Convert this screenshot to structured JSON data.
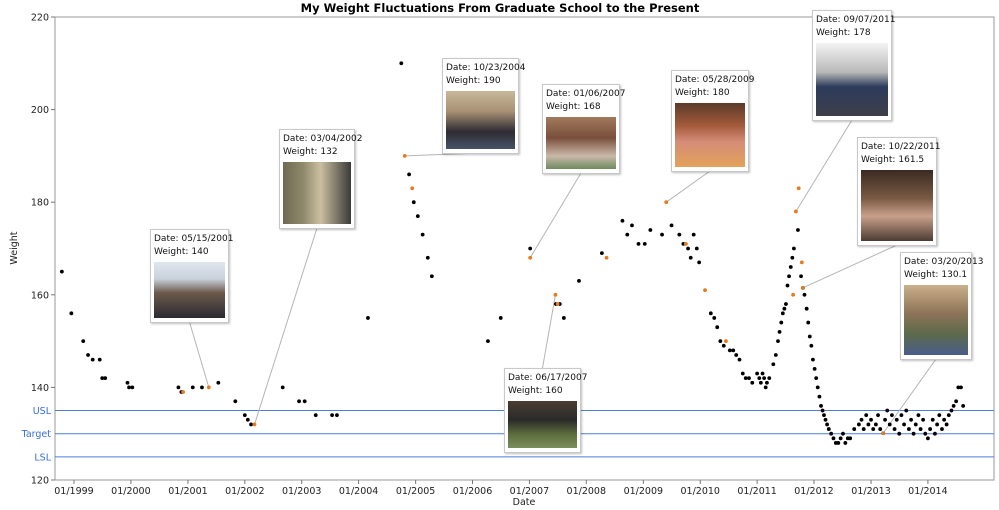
{
  "chart_data": {
    "type": "scatter",
    "title": "My Weight Fluctuations From Graduate School to the Present",
    "xlabel": "Date",
    "ylabel": "Weight",
    "ylim": [
      120,
      220
    ],
    "yticks": [
      120,
      140,
      160,
      180,
      200,
      220
    ],
    "xlim": [
      "1998-09-01",
      "2015-03-01"
    ],
    "xticks": [
      {
        "label": "01/1999",
        "date": "1999-01-01"
      },
      {
        "label": "01/2000",
        "date": "2000-01-01"
      },
      {
        "label": "01/2001",
        "date": "2001-01-01"
      },
      {
        "label": "01/2002",
        "date": "2002-01-01"
      },
      {
        "label": "01/2003",
        "date": "2003-01-01"
      },
      {
        "label": "01/2004",
        "date": "2004-01-01"
      },
      {
        "label": "01/2005",
        "date": "2005-01-01"
      },
      {
        "label": "01/2006",
        "date": "2006-01-01"
      },
      {
        "label": "01/2007",
        "date": "2007-01-01"
      },
      {
        "label": "01/2008",
        "date": "2008-01-01"
      },
      {
        "label": "01/2009",
        "date": "2009-01-01"
      },
      {
        "label": "01/2010",
        "date": "2010-01-01"
      },
      {
        "label": "01/2011",
        "date": "2011-01-01"
      },
      {
        "label": "01/2012",
        "date": "2012-01-01"
      },
      {
        "label": "01/2013",
        "date": "2013-01-01"
      },
      {
        "label": "01/2014",
        "date": "2014-01-01"
      }
    ],
    "reference_lines": [
      {
        "label": "USL",
        "value": 135
      },
      {
        "label": "Target",
        "value": 130
      },
      {
        "label": "LSL",
        "value": 125
      }
    ],
    "reference_color": "#4a7fe0",
    "grid": false,
    "point_colors": {
      "normal": "#000000",
      "highlighted": "#e87a1e"
    },
    "points": [
      {
        "date": "1998-10-15",
        "weight": 165
      },
      {
        "date": "1998-12-15",
        "weight": 156
      },
      {
        "date": "1999-03-01",
        "weight": 150
      },
      {
        "date": "1999-04-01",
        "weight": 147
      },
      {
        "date": "1999-05-01",
        "weight": 146
      },
      {
        "date": "1999-06-15",
        "weight": 146
      },
      {
        "date": "1999-07-01",
        "weight": 142
      },
      {
        "date": "1999-07-20",
        "weight": 142
      },
      {
        "date": "1999-12-10",
        "weight": 141
      },
      {
        "date": "1999-12-20",
        "weight": 140
      },
      {
        "date": "2000-01-10",
        "weight": 140
      },
      {
        "date": "2000-11-01",
        "weight": 140
      },
      {
        "date": "2000-11-20",
        "weight": 139
      },
      {
        "date": "2001-02-01",
        "weight": 140
      },
      {
        "date": "2001-04-01",
        "weight": 140
      },
      {
        "date": "2001-07-15",
        "weight": 141
      },
      {
        "date": "2001-11-01",
        "weight": 137
      },
      {
        "date": "2002-01-01",
        "weight": 134
      },
      {
        "date": "2002-01-20",
        "weight": 133
      },
      {
        "date": "2002-02-10",
        "weight": 132
      },
      {
        "date": "2002-09-01",
        "weight": 140
      },
      {
        "date": "2002-12-15",
        "weight": 137
      },
      {
        "date": "2003-01-20",
        "weight": 137
      },
      {
        "date": "2003-04-01",
        "weight": 134
      },
      {
        "date": "2003-07-15",
        "weight": 134
      },
      {
        "date": "2003-08-15",
        "weight": 134
      },
      {
        "date": "2004-03-01",
        "weight": 155
      },
      {
        "date": "2004-10-01",
        "weight": 210
      },
      {
        "date": "2004-11-20",
        "weight": 186
      },
      {
        "date": "2004-12-20",
        "weight": 180
      },
      {
        "date": "2005-01-15",
        "weight": 177
      },
      {
        "date": "2005-02-15",
        "weight": 173
      },
      {
        "date": "2005-03-20",
        "weight": 168
      },
      {
        "date": "2005-04-15",
        "weight": 164
      },
      {
        "date": "2006-04-10",
        "weight": 150
      },
      {
        "date": "2006-07-01",
        "weight": 155
      },
      {
        "date": "2007-01-06",
        "weight": 170
      },
      {
        "date": "2007-06-20",
        "weight": 158
      },
      {
        "date": "2007-07-15",
        "weight": 158
      },
      {
        "date": "2007-08-10",
        "weight": 155
      },
      {
        "date": "2007-11-15",
        "weight": 163
      },
      {
        "date": "2008-04-10",
        "weight": 169
      },
      {
        "date": "2008-08-20",
        "weight": 176
      },
      {
        "date": "2008-09-20",
        "weight": 173
      },
      {
        "date": "2008-10-20",
        "weight": 175
      },
      {
        "date": "2008-12-01",
        "weight": 171
      },
      {
        "date": "2009-01-10",
        "weight": 171
      },
      {
        "date": "2009-02-15",
        "weight": 174
      },
      {
        "date": "2009-05-01",
        "weight": 173
      },
      {
        "date": "2009-07-01",
        "weight": 175
      },
      {
        "date": "2009-08-20",
        "weight": 173
      },
      {
        "date": "2009-09-15",
        "weight": 171
      },
      {
        "date": "2009-10-15",
        "weight": 170
      },
      {
        "date": "2009-11-01",
        "weight": 168
      },
      {
        "date": "2009-11-20",
        "weight": 173
      },
      {
        "date": "2009-12-10",
        "weight": 170
      },
      {
        "date": "2009-12-25",
        "weight": 167
      },
      {
        "date": "2010-03-10",
        "weight": 156
      },
      {
        "date": "2010-04-01",
        "weight": 155
      },
      {
        "date": "2010-04-20",
        "weight": 153
      },
      {
        "date": "2010-05-10",
        "weight": 150
      },
      {
        "date": "2010-06-01",
        "weight": 149
      },
      {
        "date": "2010-07-10",
        "weight": 148
      },
      {
        "date": "2010-08-01",
        "weight": 148
      },
      {
        "date": "2010-08-20",
        "weight": 147
      },
      {
        "date": "2010-09-10",
        "weight": 146
      },
      {
        "date": "2010-10-01",
        "weight": 143
      },
      {
        "date": "2010-10-20",
        "weight": 142
      },
      {
        "date": "2010-11-10",
        "weight": 142
      },
      {
        "date": "2010-12-01",
        "weight": 141
      },
      {
        "date": "2011-01-01",
        "weight": 143
      },
      {
        "date": "2011-01-15",
        "weight": 142
      },
      {
        "date": "2011-01-25",
        "weight": 141
      },
      {
        "date": "2011-02-05",
        "weight": 143
      },
      {
        "date": "2011-02-15",
        "weight": 142
      },
      {
        "date": "2011-02-25",
        "weight": 140
      },
      {
        "date": "2011-03-05",
        "weight": 141
      },
      {
        "date": "2011-03-20",
        "weight": 142
      },
      {
        "date": "2011-04-15",
        "weight": 145
      },
      {
        "date": "2011-05-01",
        "weight": 147
      },
      {
        "date": "2011-05-15",
        "weight": 150
      },
      {
        "date": "2011-05-25",
        "weight": 152
      },
      {
        "date": "2011-06-05",
        "weight": 154
      },
      {
        "date": "2011-06-15",
        "weight": 156
      },
      {
        "date": "2011-06-25",
        "weight": 157
      },
      {
        "date": "2011-07-05",
        "weight": 158
      },
      {
        "date": "2011-07-15",
        "weight": 162
      },
      {
        "date": "2011-07-25",
        "weight": 164
      },
      {
        "date": "2011-08-05",
        "weight": 166
      },
      {
        "date": "2011-08-15",
        "weight": 168
      },
      {
        "date": "2011-08-25",
        "weight": 170
      },
      {
        "date": "2011-09-20",
        "weight": 174
      },
      {
        "date": "2011-10-10",
        "weight": 164
      },
      {
        "date": "2011-10-22",
        "weight": 161.5
      },
      {
        "date": "2011-11-01",
        "weight": 160
      },
      {
        "date": "2011-11-15",
        "weight": 157
      },
      {
        "date": "2011-11-25",
        "weight": 154
      },
      {
        "date": "2011-12-05",
        "weight": 151
      },
      {
        "date": "2011-12-15",
        "weight": 149
      },
      {
        "date": "2011-12-25",
        "weight": 146
      },
      {
        "date": "2012-01-05",
        "weight": 144
      },
      {
        "date": "2012-01-15",
        "weight": 142
      },
      {
        "date": "2012-01-25",
        "weight": 140
      },
      {
        "date": "2012-02-05",
        "weight": 138
      },
      {
        "date": "2012-02-15",
        "weight": 136
      },
      {
        "date": "2012-02-25",
        "weight": 135
      },
      {
        "date": "2012-03-05",
        "weight": 134
      },
      {
        "date": "2012-03-15",
        "weight": 133
      },
      {
        "date": "2012-03-25",
        "weight": 132
      },
      {
        "date": "2012-04-05",
        "weight": 131
      },
      {
        "date": "2012-04-20",
        "weight": 130
      },
      {
        "date": "2012-05-05",
        "weight": 129
      },
      {
        "date": "2012-05-20",
        "weight": 128
      },
      {
        "date": "2012-06-05",
        "weight": 128
      },
      {
        "date": "2012-06-20",
        "weight": 129
      },
      {
        "date": "2012-07-05",
        "weight": 130
      },
      {
        "date": "2012-07-20",
        "weight": 128
      },
      {
        "date": "2012-08-05",
        "weight": 129
      },
      {
        "date": "2012-08-20",
        "weight": 129
      },
      {
        "date": "2012-09-15",
        "weight": 131
      },
      {
        "date": "2012-10-15",
        "weight": 132
      },
      {
        "date": "2012-11-01",
        "weight": 133
      },
      {
        "date": "2012-11-15",
        "weight": 131
      },
      {
        "date": "2012-12-01",
        "weight": 134
      },
      {
        "date": "2012-12-15",
        "weight": 132
      },
      {
        "date": "2013-01-01",
        "weight": 133
      },
      {
        "date": "2013-01-15",
        "weight": 131
      },
      {
        "date": "2013-02-01",
        "weight": 132
      },
      {
        "date": "2013-02-15",
        "weight": 134
      },
      {
        "date": "2013-03-01",
        "weight": 131
      },
      {
        "date": "2013-03-20",
        "weight": 130.1
      },
      {
        "date": "2013-04-01",
        "weight": 133
      },
      {
        "date": "2013-04-15",
        "weight": 135
      },
      {
        "date": "2013-05-01",
        "weight": 132
      },
      {
        "date": "2013-05-15",
        "weight": 134
      },
      {
        "date": "2013-06-01",
        "weight": 131
      },
      {
        "date": "2013-06-15",
        "weight": 133
      },
      {
        "date": "2013-07-01",
        "weight": 130
      },
      {
        "date": "2013-07-15",
        "weight": 134
      },
      {
        "date": "2013-08-01",
        "weight": 132
      },
      {
        "date": "2013-08-15",
        "weight": 135
      },
      {
        "date": "2013-09-01",
        "weight": 131
      },
      {
        "date": "2013-09-15",
        "weight": 133
      },
      {
        "date": "2013-10-01",
        "weight": 130
      },
      {
        "date": "2013-10-15",
        "weight": 132
      },
      {
        "date": "2013-11-01",
        "weight": 134
      },
      {
        "date": "2013-11-15",
        "weight": 131
      },
      {
        "date": "2013-12-01",
        "weight": 133
      },
      {
        "date": "2013-12-15",
        "weight": 130
      },
      {
        "date": "2014-01-01",
        "weight": 129
      },
      {
        "date": "2014-01-15",
        "weight": 131
      },
      {
        "date": "2014-02-01",
        "weight": 133
      },
      {
        "date": "2014-02-15",
        "weight": 130
      },
      {
        "date": "2014-03-01",
        "weight": 132
      },
      {
        "date": "2014-03-15",
        "weight": 134
      },
      {
        "date": "2014-04-01",
        "weight": 131
      },
      {
        "date": "2014-04-15",
        "weight": 133
      },
      {
        "date": "2014-05-01",
        "weight": 132
      },
      {
        "date": "2014-05-15",
        "weight": 134
      },
      {
        "date": "2014-06-01",
        "weight": 135
      },
      {
        "date": "2014-06-15",
        "weight": 136
      },
      {
        "date": "2014-07-01",
        "weight": 137
      },
      {
        "date": "2014-07-15",
        "weight": 140
      },
      {
        "date": "2014-08-01",
        "weight": 140
      },
      {
        "date": "2014-08-15",
        "weight": 136
      }
    ],
    "highlighted_points": [
      {
        "date": "2001-05-15",
        "weight": 140
      },
      {
        "date": "2000-12-01",
        "weight": 139
      },
      {
        "date": "2002-03-04",
        "weight": 132
      },
      {
        "date": "2004-10-23",
        "weight": 190
      },
      {
        "date": "2004-12-10",
        "weight": 183
      },
      {
        "date": "2007-01-06",
        "weight": 168
      },
      {
        "date": "2007-06-17",
        "weight": 160
      },
      {
        "date": "2007-07-01",
        "weight": 158
      },
      {
        "date": "2008-05-10",
        "weight": 168
      },
      {
        "date": "2009-05-28",
        "weight": 180
      },
      {
        "date": "2009-10-01",
        "weight": 171
      },
      {
        "date": "2010-02-01",
        "weight": 161
      },
      {
        "date": "2010-06-15",
        "weight": 150
      },
      {
        "date": "2011-08-20",
        "weight": 160
      },
      {
        "date": "2011-09-07",
        "weight": 178
      },
      {
        "date": "2011-09-25",
        "weight": 183
      },
      {
        "date": "2011-10-15",
        "weight": 167
      },
      {
        "date": "2011-10-22",
        "weight": 161.5
      },
      {
        "date": "2013-03-20",
        "weight": 130.1
      }
    ],
    "annotations": [
      {
        "date_label": "Date:",
        "date": "05/15/2001",
        "weight_label": "Weight:",
        "weight": "140",
        "point_date": "2001-05-15",
        "point_weight": 140,
        "photo": "family-of-three-photo"
      },
      {
        "date_label": "Date:",
        "date": "03/04/2002",
        "weight_label": "Weight:",
        "weight": "132",
        "point_date": "2002-03-04",
        "point_weight": 132,
        "photo": "couple-at-doorway-photo"
      },
      {
        "date_label": "Date:",
        "date": "10/23/2004",
        "weight_label": "Weight:",
        "weight": "190",
        "point_date": "2004-10-23",
        "point_weight": 190,
        "photo": "couple-with-newborn-photo"
      },
      {
        "date_label": "Date:",
        "date": "01/06/2007",
        "weight_label": "Weight:",
        "weight": "168",
        "point_date": "2007-01-06",
        "point_weight": 168,
        "photo": "mother-and-child-at-table-photo"
      },
      {
        "date_label": "Date:",
        "date": "06/17/2007",
        "weight_label": "Weight:",
        "weight": "160",
        "point_date": "2007-06-17",
        "point_weight": 160,
        "photo": "graduation-group-photo"
      },
      {
        "date_label": "Date:",
        "date": "05/28/2009",
        "weight_label": "Weight:",
        "weight": "180",
        "point_date": "2009-05-28",
        "point_weight": 180,
        "photo": "mother-and-daughter-photo"
      },
      {
        "date_label": "Date:",
        "date": "09/07/2011",
        "weight_label": "Weight:",
        "weight": "178",
        "point_date": "2011-09-07",
        "point_weight": 178,
        "photo": "pregnant-woman-photo"
      },
      {
        "date_label": "Date:",
        "date": "10/22/2011",
        "weight_label": "Weight:",
        "weight": "161.5",
        "point_date": "2011-10-22",
        "point_weight": 161.5,
        "photo": "woman-with-newborn-photo"
      },
      {
        "date_label": "Date:",
        "date": "03/20/2013",
        "weight_label": "Weight:",
        "weight": "130.1",
        "point_date": "2013-03-20",
        "point_weight": 130.1,
        "photo": "woman-with-toddler-photo"
      }
    ]
  }
}
